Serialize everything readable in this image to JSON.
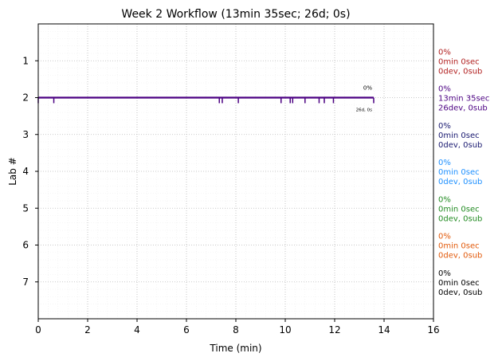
{
  "chart_data": {
    "type": "line",
    "title": "Week 2 Workflow (13min 35sec; 26d; 0s)",
    "xlabel": "Time (min)",
    "ylabel": "Lab #",
    "xlim": [
      0,
      16
    ],
    "ylim": [
      8,
      0
    ],
    "x_ticks": [
      0,
      2,
      4,
      6,
      8,
      10,
      12,
      14,
      16
    ],
    "y_ticks": [
      1,
      2,
      3,
      4,
      5,
      6,
      7
    ],
    "grid": true,
    "series": [
      {
        "lab": 2,
        "color": "#4b0082",
        "x": [
          0,
          13.58
        ],
        "y": [
          2,
          2
        ],
        "event_times": [
          0.0,
          0.63,
          7.33,
          7.45,
          8.1,
          9.83,
          10.2,
          10.3,
          10.8,
          11.37,
          11.58,
          11.95,
          13.58
        ],
        "label_pct": "0%",
        "label_counts": "26d, 0s"
      }
    ],
    "right_labels": [
      {
        "lab": 1,
        "color": "#b22222",
        "pct": "0%",
        "time": "0min 0sec",
        "counts": "0dev, 0sub"
      },
      {
        "lab": 2,
        "color": "#4b0082",
        "pct": "0%",
        "time": "13min 35sec",
        "counts": "26dev, 0sub"
      },
      {
        "lab": 3,
        "color": "#191970",
        "pct": "0%",
        "time": "0min 0sec",
        "counts": "0dev, 0sub"
      },
      {
        "lab": 4,
        "color": "#1e90ff",
        "pct": "0%",
        "time": "0min 0sec",
        "counts": "0dev, 0sub"
      },
      {
        "lab": 5,
        "color": "#228b22",
        "pct": "0%",
        "time": "0min 0sec",
        "counts": "0dev, 0sub"
      },
      {
        "lab": 6,
        "color": "#e25a0b",
        "pct": "0%",
        "time": "0min 0sec",
        "counts": "0dev, 0sub"
      },
      {
        "lab": 7,
        "color": "#000000",
        "pct": "0%",
        "time": "0min 0sec",
        "counts": "0dev, 0sub"
      }
    ]
  }
}
